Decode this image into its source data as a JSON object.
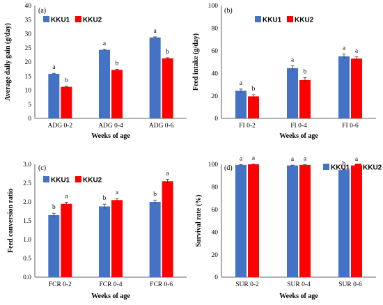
{
  "chart_data": [
    {
      "type": "bar",
      "panel": "(a)",
      "ylabel": "Average daily gain (g/day)",
      "xlabel": "Weeks of age",
      "categories": [
        "ADG 0-2",
        "ADG 0-4",
        "ADG 0-6"
      ],
      "ylim": [
        0,
        40
      ],
      "yticks": [
        0,
        5,
        10,
        15,
        20,
        25,
        30,
        35,
        40
      ],
      "series": [
        {
          "name": "KKU1",
          "color": "#4472c4",
          "values": [
            15.8,
            24.3,
            28.7
          ],
          "errors": [
            0.2,
            0.2,
            0.2
          ],
          "letters": [
            "a",
            "a",
            "a"
          ]
        },
        {
          "name": "KKU2",
          "color": "#ff0000",
          "values": [
            11.2,
            17.2,
            21.3
          ],
          "errors": [
            0.2,
            0.2,
            0.2
          ],
          "letters": [
            "b",
            "b",
            "b"
          ]
        }
      ],
      "legend_position": "top-left"
    },
    {
      "type": "bar",
      "panel": "(b)",
      "ylabel": "Feed intake (g/day)",
      "xlabel": "Weeks of age",
      "categories": [
        "FI 0-2",
        "FI 0-4",
        "FI 0-6"
      ],
      "ylim": [
        0,
        100
      ],
      "yticks": [
        0,
        20,
        40,
        60,
        80,
        100
      ],
      "series": [
        {
          "name": "KKU1",
          "color": "#4472c4",
          "values": [
            24.5,
            44.5,
            55.0
          ],
          "errors": [
            1.5,
            2.0,
            2.0
          ],
          "letters": [
            "a",
            "a",
            "a"
          ]
        },
        {
          "name": "KKU2",
          "color": "#ff0000",
          "values": [
            19.5,
            34.0,
            53.0
          ],
          "errors": [
            1.5,
            2.0,
            1.5
          ],
          "letters": [
            "b",
            "b",
            "a"
          ]
        }
      ],
      "legend_position": "top-left"
    },
    {
      "type": "bar",
      "panel": "(c)",
      "ylabel": "Feed conversion ratio",
      "xlabel": "Weeks of age",
      "categories": [
        "FCR 0-2",
        "FCR 0-4",
        "FCR 0-6"
      ],
      "ylim": [
        0,
        3.0
      ],
      "yticks": [
        "0.0",
        "0.5",
        "1.0",
        "1.5",
        "2.0",
        "2.5",
        "3.0"
      ],
      "series": [
        {
          "name": "KKU1",
          "color": "#4472c4",
          "values": [
            1.65,
            1.88,
            2.0
          ],
          "errors": [
            0.05,
            0.06,
            0.05
          ],
          "letters": [
            "b",
            "b",
            "b"
          ]
        },
        {
          "name": "KKU2",
          "color": "#ff0000",
          "values": [
            1.95,
            2.05,
            2.55
          ],
          "errors": [
            0.04,
            0.04,
            0.05
          ],
          "letters": [
            "a",
            "a",
            "a"
          ]
        }
      ],
      "legend_position": "top-left"
    },
    {
      "type": "bar",
      "panel": "(d)",
      "ylabel": "Survival rate (%)",
      "xlabel": "Weeks of age",
      "categories": [
        "SUR 0-2",
        "SUR 0-4",
        "SUR 0-6"
      ],
      "ylim": [
        0,
        100
      ],
      "yticks": [
        0,
        20,
        40,
        60,
        80,
        100
      ],
      "series": [
        {
          "name": "KKU1",
          "color": "#4472c4",
          "values": [
            99.5,
            99.0,
            95.0
          ],
          "errors": [
            0.3,
            0.3,
            0.3
          ],
          "letters": [
            "a",
            "a",
            "b"
          ]
        },
        {
          "name": "KKU2",
          "color": "#ff0000",
          "values": [
            100.0,
            99.5,
            99.0
          ],
          "errors": [
            0.3,
            0.3,
            0.3
          ],
          "letters": [
            "a",
            "a",
            "a"
          ]
        }
      ],
      "legend_position": "top"
    }
  ]
}
